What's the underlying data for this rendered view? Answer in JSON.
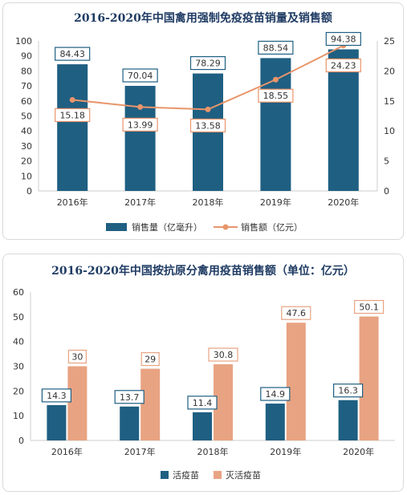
{
  "colors": {
    "teal": "#1f5f82",
    "salmon": "#e8a382",
    "line": "#e8956b",
    "axis": "#cccccc",
    "text": "#333333"
  },
  "chart_data": [
    {
      "type": "bar",
      "title": "2016-2020年中国禽用强制免疫疫苗销量及销售额",
      "categories": [
        "2016年",
        "2017年",
        "2018年",
        "2019年",
        "2020年"
      ],
      "ylim": [
        0,
        100
      ],
      "yticks": [
        0,
        10,
        20,
        30,
        40,
        50,
        60,
        70,
        80,
        90,
        100
      ],
      "y2lim": [
        0,
        25
      ],
      "y2ticks": [
        0,
        5,
        10,
        15,
        20,
        25
      ],
      "series": [
        {
          "name": "销售量（亿毫升）",
          "kind": "bar",
          "axis": "left",
          "color": "#1f5f82",
          "values": [
            84.43,
            70.04,
            78.29,
            88.54,
            94.38
          ],
          "labels": [
            "84.43",
            "70.04",
            "78.29",
            "88.54",
            "94.38"
          ]
        },
        {
          "name": "销售额（亿元）",
          "kind": "line",
          "axis": "right",
          "color": "#e8956b",
          "values": [
            15.18,
            13.99,
            13.58,
            18.55,
            24.23
          ],
          "labels": [
            "15.18",
            "13.99",
            "13.58",
            "18.55",
            "24.23"
          ]
        }
      ],
      "legend": "bottom",
      "grid": false
    },
    {
      "type": "bar",
      "title": "2016-2020年中国按抗原分禽用疫苗销售额（单位：亿元）",
      "categories": [
        "2016年",
        "2017年",
        "2018年",
        "2019年",
        "2020年"
      ],
      "ylim": [
        0,
        60
      ],
      "yticks": [
        0,
        10,
        20,
        30,
        40,
        50,
        60
      ],
      "series": [
        {
          "name": "活疫苗",
          "color": "#1f5f82",
          "values": [
            14.3,
            13.7,
            11.4,
            14.9,
            16.3
          ],
          "labels": [
            "14.3",
            "13.7",
            "11.4",
            "14.9",
            "16.3"
          ]
        },
        {
          "name": "灭活疫苗",
          "color": "#e8a382",
          "values": [
            30,
            29,
            30.8,
            47.6,
            50.1
          ],
          "labels": [
            "30",
            "29",
            "30.8",
            "47.6",
            "50.1"
          ]
        }
      ],
      "legend": "bottom",
      "grid": false
    }
  ]
}
